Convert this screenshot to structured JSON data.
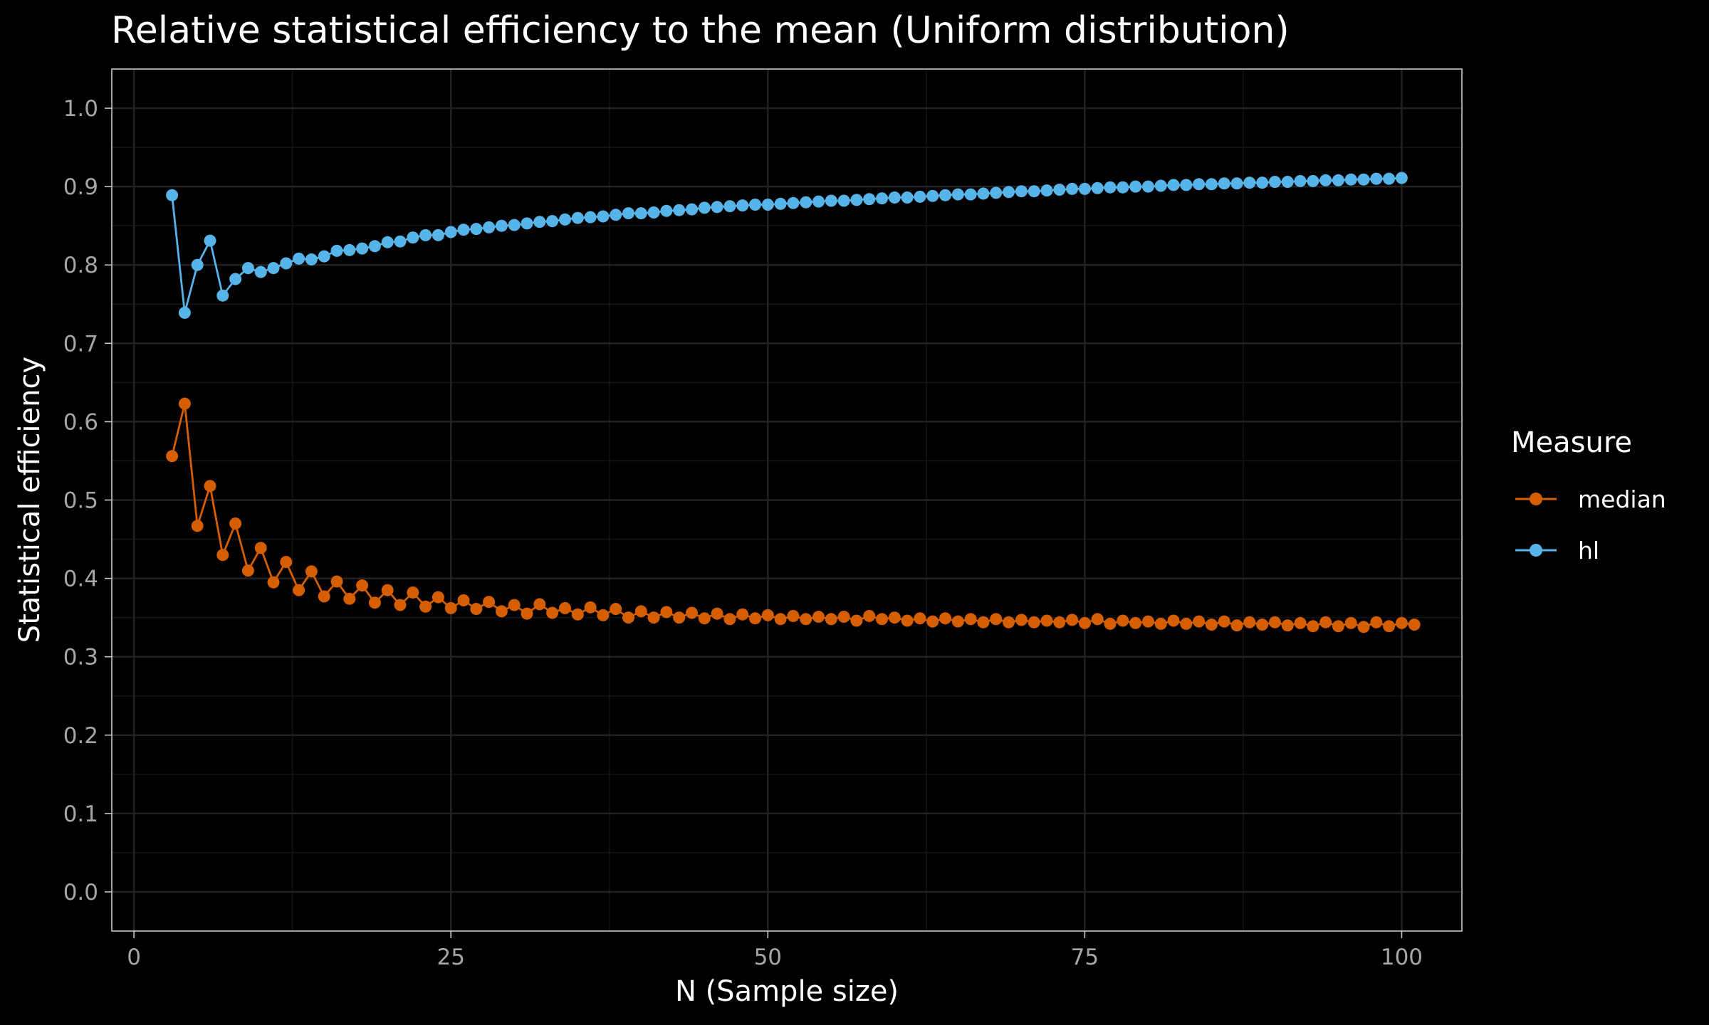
{
  "chart_data": {
    "type": "line",
    "title": "Relative statistical efficiency to the mean (Uniform distribution)",
    "xlabel": "N (Sample size)",
    "ylabel": "Statistical efficiency",
    "xlim": [
      -1.75,
      104.75
    ],
    "ylim": [
      -0.05,
      1.05
    ],
    "xticks": [
      0,
      25,
      50,
      75,
      100
    ],
    "xtick_labels": [
      "0",
      "25",
      "50",
      "75",
      "100"
    ],
    "yticks": [
      0.0,
      0.1,
      0.2,
      0.3,
      0.4,
      0.5,
      0.6,
      0.7,
      0.8,
      0.9,
      1.0
    ],
    "ytick_labels": [
      "0.0",
      "0.1",
      "0.2",
      "0.3",
      "0.4",
      "0.5",
      "0.6",
      "0.7",
      "0.8",
      "0.9",
      "1.0"
    ],
    "grid": true,
    "legend": {
      "title": "Measure",
      "position": "right"
    },
    "x_start": 3,
    "series": [
      {
        "name": "median",
        "color": "#D55E00",
        "values": [
          0.556,
          0.623,
          0.467,
          0.518,
          0.43,
          0.47,
          0.41,
          0.439,
          0.395,
          0.421,
          0.385,
          0.409,
          0.377,
          0.396,
          0.374,
          0.391,
          0.369,
          0.385,
          0.366,
          0.382,
          0.364,
          0.376,
          0.362,
          0.372,
          0.361,
          0.37,
          0.358,
          0.366,
          0.355,
          0.367,
          0.356,
          0.362,
          0.354,
          0.363,
          0.353,
          0.361,
          0.35,
          0.358,
          0.35,
          0.357,
          0.35,
          0.356,
          0.349,
          0.355,
          0.348,
          0.354,
          0.349,
          0.353,
          0.348,
          0.352,
          0.348,
          0.351,
          0.348,
          0.351,
          0.346,
          0.352,
          0.348,
          0.35,
          0.346,
          0.349,
          0.345,
          0.349,
          0.345,
          0.348,
          0.344,
          0.348,
          0.344,
          0.347,
          0.344,
          0.346,
          0.344,
          0.347,
          0.343,
          0.348,
          0.342,
          0.346,
          0.343,
          0.345,
          0.342,
          0.346,
          0.342,
          0.345,
          0.341,
          0.345,
          0.34,
          0.344,
          0.341,
          0.344,
          0.34,
          0.343,
          0.339,
          0.344,
          0.339,
          0.343,
          0.338,
          0.344,
          0.339,
          0.343,
          0.341
        ]
      },
      {
        "name": "hl",
        "color": "#56B4E9",
        "values": [
          0.889,
          0.739,
          0.8,
          0.831,
          0.761,
          0.782,
          0.796,
          0.791,
          0.796,
          0.802,
          0.808,
          0.807,
          0.811,
          0.818,
          0.819,
          0.821,
          0.824,
          0.829,
          0.83,
          0.835,
          0.838,
          0.838,
          0.842,
          0.845,
          0.846,
          0.848,
          0.85,
          0.851,
          0.853,
          0.855,
          0.856,
          0.858,
          0.86,
          0.861,
          0.862,
          0.864,
          0.866,
          0.866,
          0.867,
          0.869,
          0.87,
          0.871,
          0.873,
          0.874,
          0.875,
          0.876,
          0.877,
          0.877,
          0.878,
          0.879,
          0.88,
          0.881,
          0.882,
          0.882,
          0.883,
          0.884,
          0.885,
          0.886,
          0.886,
          0.887,
          0.888,
          0.889,
          0.89,
          0.89,
          0.891,
          0.892,
          0.893,
          0.894,
          0.894,
          0.895,
          0.896,
          0.897,
          0.897,
          0.898,
          0.899,
          0.899,
          0.9,
          0.9,
          0.901,
          0.902,
          0.902,
          0.903,
          0.903,
          0.904,
          0.904,
          0.905,
          0.905,
          0.906,
          0.906,
          0.907,
          0.907,
          0.908,
          0.908,
          0.909,
          0.909,
          0.91,
          0.91,
          0.911
        ]
      }
    ]
  }
}
